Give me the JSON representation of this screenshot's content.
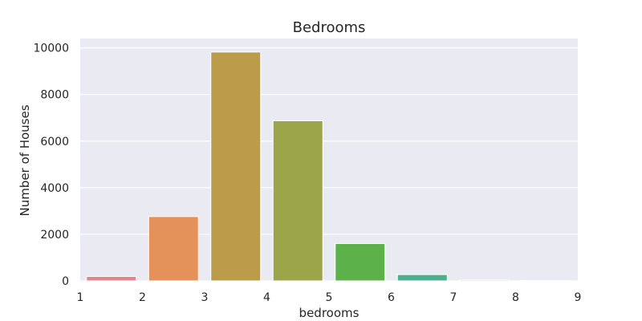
{
  "chart_data": {
    "type": "bar",
    "title": "Bedrooms",
    "xlabel": "bedrooms",
    "ylabel": "Number of Houses",
    "categories": [
      "1",
      "2",
      "3",
      "4",
      "5",
      "6",
      "7",
      "8",
      "9"
    ],
    "values": [
      190,
      2760,
      9820,
      6870,
      1600,
      270,
      40,
      15,
      5
    ],
    "x_ticks": [
      "1",
      "2",
      "3",
      "4",
      "5",
      "6",
      "7",
      "8",
      "9"
    ],
    "y_ticks": [
      "0",
      "2000",
      "4000",
      "6000",
      "8000",
      "10000"
    ],
    "ylim": [
      0,
      10400
    ],
    "grid": true,
    "background_color": "#eaeaf2",
    "grid_color": "#ffffff",
    "colors": [
      "#e8838d",
      "#e4915a",
      "#ba9c4b",
      "#9ba64a",
      "#5cb14b",
      "#4bb08b",
      "#4fadb3",
      "#4ea8d9",
      "#a98fd9"
    ]
  }
}
